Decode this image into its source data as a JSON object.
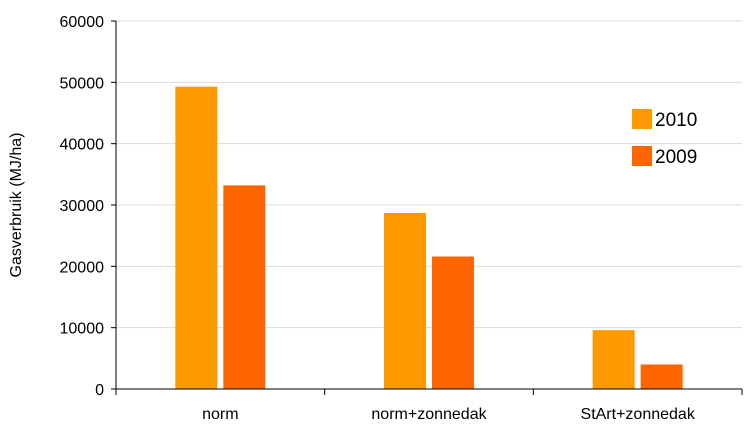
{
  "chart_data": {
    "type": "bar",
    "title": "",
    "xlabel": "",
    "ylabel": "Gasverbruik (MJ/ha)",
    "categories": [
      "norm",
      "norm+zonnedak",
      "StArt+zonnedak"
    ],
    "series": [
      {
        "name": "2010",
        "color": "#ff9900",
        "values": [
          49300,
          28700,
          9600
        ]
      },
      {
        "name": "2009",
        "color": "#ff6600",
        "values": [
          33200,
          21600,
          4000
        ]
      }
    ],
    "ylim": [
      0,
      60000
    ],
    "yticks": [
      0,
      10000,
      20000,
      30000,
      40000,
      50000,
      60000
    ],
    "grid": true,
    "legend_position": "right"
  }
}
